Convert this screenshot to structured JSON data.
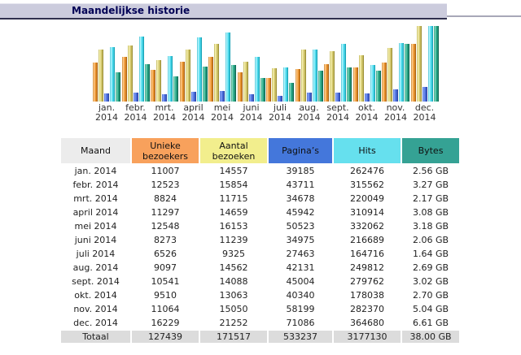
{
  "title": "Maandelijkse historie",
  "chart_data": {
    "type": "bar",
    "title": "Maandelijkse historie",
    "categories": [
      "jan. 2014",
      "febr. 2014",
      "mrt. 2014",
      "april 2014",
      "mei 2014",
      "juni 2014",
      "juli 2014",
      "aug. 2014",
      "sept. 2014",
      "okt. 2014",
      "nov. 2014",
      "dec. 2014"
    ],
    "category_labels": [
      {
        "month": "jan.",
        "year": "2014"
      },
      {
        "month": "febr.",
        "year": "2014"
      },
      {
        "month": "mrt.",
        "year": "2014"
      },
      {
        "month": "april",
        "year": "2014"
      },
      {
        "month": "mei",
        "year": "2014"
      },
      {
        "month": "juni",
        "year": "2014"
      },
      {
        "month": "juli",
        "year": "2014"
      },
      {
        "month": "aug.",
        "year": "2014"
      },
      {
        "month": "sept.",
        "year": "2014"
      },
      {
        "month": "okt.",
        "year": "2014"
      },
      {
        "month": "nov.",
        "year": "2014"
      },
      {
        "month": "dec.",
        "year": "2014"
      }
    ],
    "series": [
      {
        "key": "unieke-bezoekers",
        "name": "Unieke bezoekers",
        "scale_group": "visits",
        "color": "#EE9733",
        "shades": [
          "#C0721C",
          "#FFD59A",
          "#F4A44A",
          "#E08A25",
          "#9A560F"
        ],
        "values": [
          11007,
          12523,
          8824,
          11297,
          12548,
          8273,
          6526,
          9097,
          10541,
          9510,
          11064,
          16229
        ]
      },
      {
        "key": "aantal-bezoeken",
        "name": "Aantal bezoeken",
        "scale_group": "visits",
        "color": "#DDD37C",
        "shades": [
          "#B0A43D",
          "#FAF6BE",
          "#E0D681",
          "#CCC063",
          "#8E822B"
        ],
        "values": [
          14557,
          15854,
          11715,
          14659,
          16153,
          11239,
          9325,
          14562,
          14088,
          13063,
          15050,
          21252
        ]
      },
      {
        "key": "paginas",
        "name": "Pagina’s",
        "scale_group": "hits",
        "color": "#4477DB",
        "shades": [
          "#3B59BD",
          "#8FACFA",
          "#5A7AE6",
          "#4062CE",
          "#26419B"
        ],
        "values": [
          39185,
          43711,
          34678,
          45942,
          50523,
          34975,
          27463,
          42131,
          45004,
          40340,
          58199,
          71086
        ]
      },
      {
        "key": "hits",
        "name": "Hits",
        "scale_group": "hits",
        "color": "#55DEEF",
        "shades": [
          "#28B4C9",
          "#C4F8FF",
          "#69E4F4",
          "#3ED2E5",
          "#1092A7"
        ],
        "values": [
          262476,
          315562,
          220049,
          310914,
          332062,
          216689,
          164716,
          249812,
          279762,
          178038,
          282370,
          364680
        ]
      },
      {
        "key": "bytes",
        "name": "Bytes",
        "scale_group": "bytes",
        "unit": "GB",
        "color": "#2AA98A",
        "shades": [
          "#1E896D",
          "#92E0C6",
          "#32B090",
          "#21987B",
          "#0C5B46"
        ],
        "values": [
          2.56,
          3.27,
          2.17,
          3.08,
          3.18,
          2.06,
          1.64,
          2.69,
          3.02,
          2.7,
          5.04,
          6.61
        ]
      }
    ],
    "legend_position": "none",
    "grid": false,
    "scaling_note": "each scale_group is normalized to that group's maximum value; bar heights are relative"
  },
  "table": {
    "columns": [
      {
        "key": "maand",
        "label": "Maand",
        "bg": "#ECECEC",
        "text": "#111111"
      },
      {
        "key": "unieke-bezoekers",
        "label": "Unieke bezoekers",
        "bg": "#F8A15C",
        "text": "#111111"
      },
      {
        "key": "aantal-bezoeken",
        "label": "Aantal bezoeken",
        "bg": "#F2EE8D",
        "text": "#111111"
      },
      {
        "key": "paginas",
        "label": "Pagina’s",
        "bg": "#4477DB",
        "text": "#111111"
      },
      {
        "key": "hits",
        "label": "Hits",
        "bg": "#66E0EE",
        "text": "#111111"
      },
      {
        "key": "bytes",
        "label": "Bytes",
        "bg": "#35A294",
        "text": "#111111"
      }
    ],
    "rows": [
      [
        "jan. 2014",
        "11007",
        "14557",
        "39185",
        "262476",
        "2.56 GB"
      ],
      [
        "febr. 2014",
        "12523",
        "15854",
        "43711",
        "315562",
        "3.27 GB"
      ],
      [
        "mrt. 2014",
        "8824",
        "11715",
        "34678",
        "220049",
        "2.17 GB"
      ],
      [
        "april 2014",
        "11297",
        "14659",
        "45942",
        "310914",
        "3.08 GB"
      ],
      [
        "mei 2014",
        "12548",
        "16153",
        "50523",
        "332062",
        "3.18 GB"
      ],
      [
        "juni 2014",
        "8273",
        "11239",
        "34975",
        "216689",
        "2.06 GB"
      ],
      [
        "juli 2014",
        "6526",
        "9325",
        "27463",
        "164716",
        "1.64 GB"
      ],
      [
        "aug. 2014",
        "9097",
        "14562",
        "42131",
        "249812",
        "2.69 GB"
      ],
      [
        "sept. 2014",
        "10541",
        "14088",
        "45004",
        "279762",
        "3.02 GB"
      ],
      [
        "okt. 2014",
        "9510",
        "13063",
        "40340",
        "178038",
        "2.70 GB"
      ],
      [
        "nov. 2014",
        "11064",
        "15050",
        "58199",
        "282370",
        "5.04 GB"
      ],
      [
        "dec. 2014",
        "16229",
        "21252",
        "71086",
        "364680",
        "6.61 GB"
      ]
    ],
    "total_row": [
      "Totaal",
      "127439",
      "171517",
      "533237",
      "3177130",
      "38.00 GB"
    ],
    "total_bg": "#DCDCDC"
  }
}
